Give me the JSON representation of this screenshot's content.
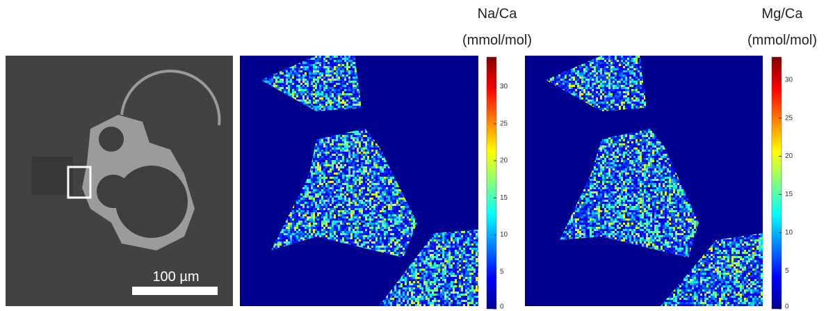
{
  "scale_bar": {
    "label": "100 µm"
  },
  "colorbars": [
    {
      "title": "Na/Ca",
      "unit": "(mmol/mol)",
      "lim": [
        0,
        34
      ],
      "ticks": [
        0,
        5,
        10,
        15,
        20,
        25,
        30
      ]
    },
    {
      "title": "Mg/Ca",
      "unit": "(mmol/mol)",
      "lim": [
        0,
        33
      ],
      "ticks": [
        0,
        5,
        10,
        15,
        20,
        25,
        30
      ]
    }
  ]
}
